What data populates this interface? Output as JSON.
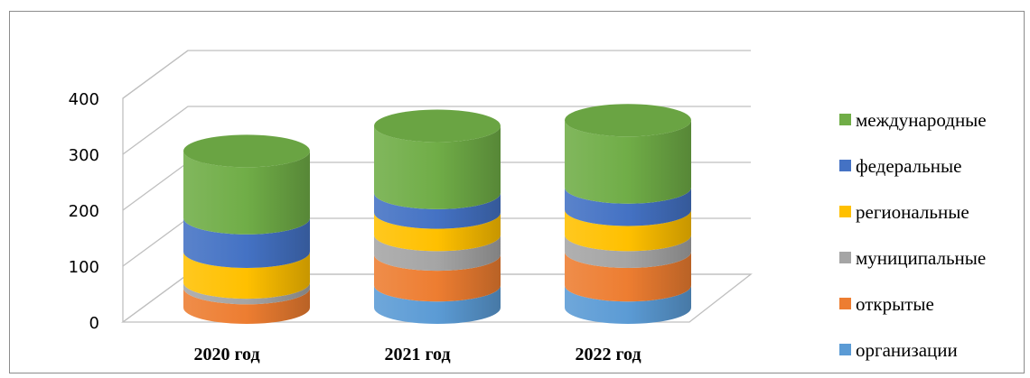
{
  "chart_data": {
    "type": "bar",
    "style": "stacked-3d-cylinder",
    "title": "",
    "xlabel": "",
    "ylabel": "",
    "ylim": [
      0,
      400
    ],
    "yticks": [
      0,
      100,
      200,
      300,
      400
    ],
    "grid": true,
    "legend_position": "right",
    "categories": [
      "2020 год",
      "2021 год",
      "2022 год"
    ],
    "series": [
      {
        "name": "организации",
        "color": "#5b9bd5",
        "values": [
          0,
          40,
          40
        ]
      },
      {
        "name": "открытые",
        "color": "#ed7d31",
        "values": [
          35,
          55,
          60
        ]
      },
      {
        "name": "муниципальные",
        "color": "#a5a5a5",
        "values": [
          10,
          35,
          30
        ]
      },
      {
        "name": "региональные",
        "color": "#ffc000",
        "values": [
          55,
          40,
          45
        ]
      },
      {
        "name": "федеральные",
        "color": "#4472c4",
        "values": [
          60,
          35,
          40
        ]
      },
      {
        "name": "международные",
        "color": "#70ad47",
        "values": [
          120,
          120,
          120
        ]
      }
    ]
  }
}
